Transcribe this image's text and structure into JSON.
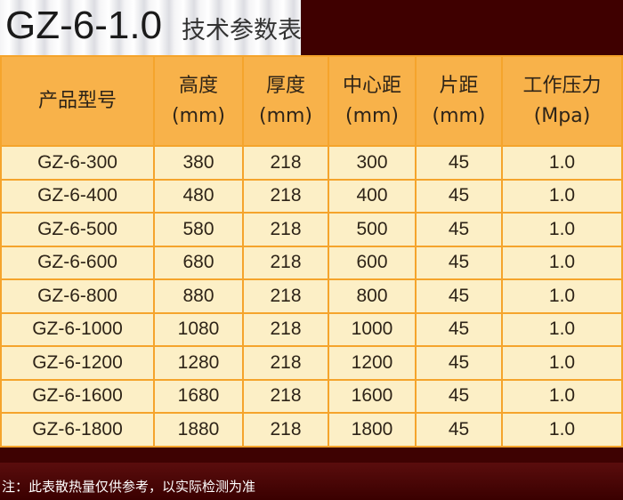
{
  "title": {
    "model": "GZ-6-1.0",
    "subtitle": "技术参数表"
  },
  "table": {
    "headers": [
      {
        "label": "产品型号",
        "unit": ""
      },
      {
        "label": "高度",
        "unit": "(mm)"
      },
      {
        "label": "厚度",
        "unit": "(mm)"
      },
      {
        "label": "中心距",
        "unit": "(mm)"
      },
      {
        "label": "片距",
        "unit": "(mm)"
      },
      {
        "label": "工作压力",
        "unit": "(Mpa)"
      }
    ],
    "rows": [
      [
        "GZ-6-300",
        "380",
        "218",
        "300",
        "45",
        "1.0"
      ],
      [
        "GZ-6-400",
        "480",
        "218",
        "400",
        "45",
        "1.0"
      ],
      [
        "GZ-6-500",
        "580",
        "218",
        "500",
        "45",
        "1.0"
      ],
      [
        "GZ-6-600",
        "680",
        "218",
        "600",
        "45",
        "1.0"
      ],
      [
        "GZ-6-800",
        "880",
        "218",
        "800",
        "45",
        "1.0"
      ],
      [
        "GZ-6-1000",
        "1080",
        "218",
        "1000",
        "45",
        "1.0"
      ],
      [
        "GZ-6-1200",
        "1280",
        "218",
        "1200",
        "45",
        "1.0"
      ],
      [
        "GZ-6-1600",
        "1680",
        "218",
        "1600",
        "45",
        "1.0"
      ],
      [
        "GZ-6-1800",
        "1880",
        "218",
        "1800",
        "45",
        "1.0"
      ]
    ]
  },
  "note": "注：此表散热量仅供参考，以实际检测为准",
  "colors": {
    "header": "#f8b24a",
    "row": "#fcefc6",
    "border": "#f5a42c",
    "background": "#3f0000"
  }
}
